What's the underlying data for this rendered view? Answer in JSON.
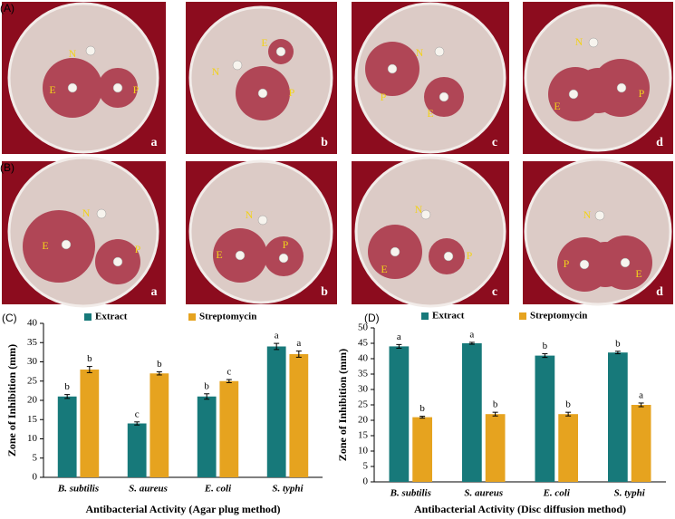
{
  "photo_panels": [
    {
      "label": "(A)",
      "plates": [
        {
          "label": "a",
          "markers": [
            "N",
            "E",
            "P"
          ]
        },
        {
          "label": "b",
          "markers": [
            "N",
            "E",
            "P"
          ]
        },
        {
          "label": "c",
          "markers": [
            "N",
            "P",
            "E"
          ]
        },
        {
          "label": "d",
          "markers": [
            "N",
            "E",
            "P"
          ]
        }
      ]
    },
    {
      "label": "(B)",
      "plates": [
        {
          "label": "a",
          "markers": [
            "N",
            "E",
            "P"
          ]
        },
        {
          "label": "b",
          "markers": [
            "N",
            "E",
            "P"
          ]
        },
        {
          "label": "c",
          "markers": [
            "N",
            "E",
            "P"
          ]
        },
        {
          "label": "d",
          "markers": [
            "N",
            "P",
            "E"
          ]
        }
      ]
    }
  ],
  "chart_data": [
    {
      "type": "bar",
      "panel_label": "(C)",
      "categories": [
        "B. subtilis",
        "S. aureus",
        "E. coli",
        "S. typhi"
      ],
      "series": [
        {
          "name": "Extract",
          "color": "#17797a",
          "values": [
            21,
            14,
            21,
            34
          ],
          "errors": [
            0.5,
            0.4,
            0.7,
            0.8
          ],
          "letters": [
            "b",
            "c",
            "b",
            "a"
          ]
        },
        {
          "name": "Streptomycin",
          "color": "#e6a31f",
          "values": [
            28,
            27,
            25,
            32
          ],
          "errors": [
            0.8,
            0.4,
            0.4,
            0.8
          ],
          "letters": [
            "b",
            "b",
            "c",
            "a"
          ]
        }
      ],
      "ylim": [
        0,
        40
      ],
      "yticks": [
        0,
        5,
        10,
        15,
        20,
        25,
        30,
        35,
        40
      ],
      "ylabel": "Zone of Inhibition (mm)",
      "xlabel": "Antibacterial Activity (Agar plug method)"
    },
    {
      "type": "bar",
      "panel_label": "(D)",
      "categories": [
        "B. subtilis",
        "S. aureus",
        "E. coli",
        "S. typhi"
      ],
      "series": [
        {
          "name": "Extract",
          "color": "#17797a",
          "values": [
            44,
            45,
            41,
            42
          ],
          "errors": [
            0.6,
            0.3,
            0.6,
            0.4
          ],
          "letters": [
            "a",
            "a",
            "b",
            "b"
          ]
        },
        {
          "name": "Streptomycin",
          "color": "#e6a31f",
          "values": [
            21,
            22,
            22,
            25
          ],
          "errors": [
            0.3,
            0.6,
            0.6,
            0.6
          ],
          "letters": [
            "b",
            "b",
            "b",
            "a"
          ]
        }
      ],
      "ylim": [
        0,
        50
      ],
      "yticks": [
        0,
        5,
        10,
        15,
        20,
        25,
        30,
        35,
        40,
        45,
        50
      ],
      "ylabel": "Zone of Inhibition (mm)",
      "xlabel": "Antibacterial Activity (Disc diffusion method)"
    }
  ]
}
